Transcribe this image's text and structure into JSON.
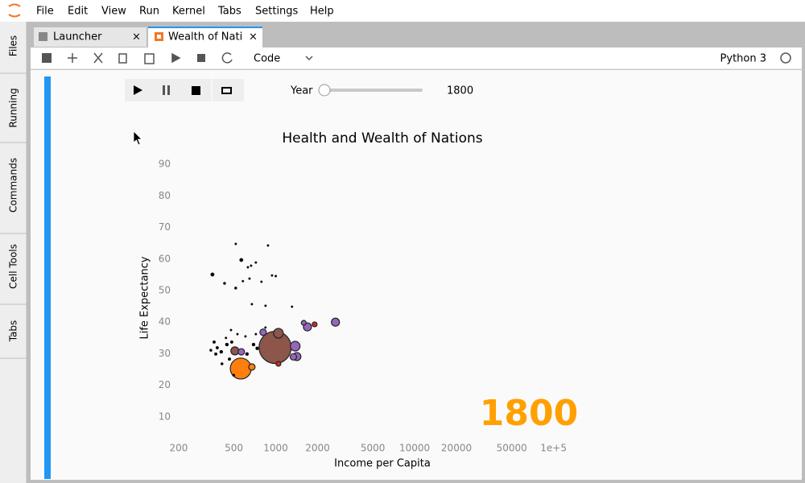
{
  "menu": [
    "File",
    "Edit",
    "View",
    "Run",
    "Kernel",
    "Tabs",
    "Settings",
    "Help"
  ],
  "sidebar": [
    "Files",
    "Running",
    "Commands",
    "Cell Tools",
    "Tabs"
  ],
  "tabs": [
    "Launcher",
    "Wealth of Nati"
  ],
  "toolbar": {
    "cell_type": "Code",
    "kernel": "Python 3"
  },
  "widget": {
    "label": "Year",
    "value": "1800"
  },
  "chart_data": {
    "type": "scatter",
    "title": "Health and Wealth of Nations",
    "x_label": "Income per Capita",
    "y_label": "Life Expectancy",
    "annotation": "1800",
    "annotation_color": "#ffa000",
    "log_x": true,
    "xlim": [
      150,
      150000
    ],
    "ylim": [
      0,
      100
    ],
    "xticks": [
      200,
      500,
      1000,
      2000,
      5000,
      10000,
      20000,
      50000,
      {
        "value": 100000,
        "label": "1e+5"
      }
    ],
    "yticks": [
      10,
      20,
      30,
      40,
      50,
      60,
      70,
      80,
      90
    ],
    "series": [
      {
        "color": "#8c564b",
        "x": [
          990,
          1045,
          508
        ],
        "values": [
          32,
          36.5,
          30.9
        ],
        "sizes": [
          20,
          6,
          5
        ]
      },
      {
        "color": "#ff7f0e",
        "x": [
          560,
          673
        ],
        "values": [
          25.3,
          25.8
        ],
        "sizes": [
          13,
          4
        ]
      },
      {
        "color": "#9467bd",
        "x": [
          1380,
          1690,
          2690,
          1420,
          1340,
          811,
          565,
          1590
        ],
        "values": [
          32.4,
          38.5,
          40,
          29.1,
          29,
          36.8,
          30.6,
          39.8
        ],
        "sizes": [
          6,
          5,
          5,
          5,
          4,
          4,
          4,
          3
        ]
      },
      {
        "color": "#d62728",
        "x": [
          1905,
          1045
        ],
        "values": [
          39.3,
          26.8
        ],
        "sizes": [
          3,
          3
        ]
      },
      {
        "color": "#000000",
        "x": [
          350,
          565,
          515,
          879,
          570,
          664,
          719,
          630,
          428,
          515,
          580,
          789,
          647,
          940,
          1000,
          673,
          844,
          1309,
          476,
          530,
          843,
          719,
          360,
          379,
          370,
          405,
          445,
          464,
          621,
          692,
          735,
          410,
          498,
          605,
          438,
          341,
          482
        ],
        "values": [
          55.1,
          59.7,
          64.8,
          64.3,
          59.7,
          57.9,
          58.9,
          57.4,
          52.3,
          50.8,
          53,
          52.8,
          53.8,
          54.8,
          54.6,
          45.7,
          45.2,
          44.9,
          37.5,
          36.2,
          38.3,
          36.2,
          33.7,
          31.9,
          29.9,
          30.6,
          32.9,
          28.3,
          29.9,
          32.9,
          31.7,
          26.8,
          23.2,
          35.5,
          35,
          31.1,
          33.7
        ],
        "sizes": [
          2.2,
          2.2,
          1.3,
          1.3,
          1.3,
          1.3,
          1.3,
          1.3,
          1.6,
          1.6,
          1.3,
          1.3,
          1.3,
          1.3,
          1.3,
          1.3,
          1.3,
          1.3,
          1.3,
          1.3,
          1.3,
          1.3,
          1.8,
          1.8,
          1.8,
          2,
          2,
          1.8,
          2,
          2,
          2,
          1.6,
          1.6,
          1.3,
          1.3,
          1.6,
          1.8
        ]
      }
    ]
  }
}
